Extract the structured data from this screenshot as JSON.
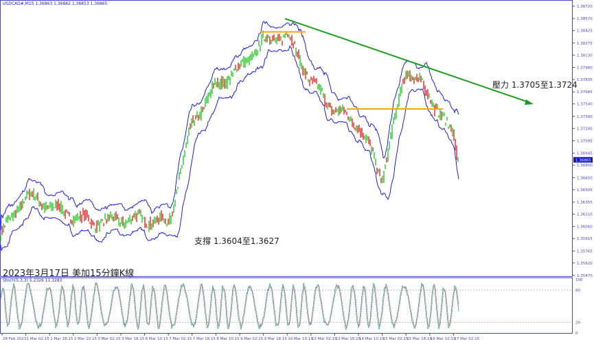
{
  "header": {
    "symbol_info": "USDCAD#,M15  1.36863 1.36882 1.36853 1.36865"
  },
  "title": "2023年3月17日 美加15分鐘K線",
  "annotations": {
    "resistance": "壓力 1.3705至1.3724",
    "support": "支撐 1.3604至1.3627"
  },
  "stoch": {
    "label": "Stoch(5,3,3) 5.2326 11.3283",
    "ticks": [
      "100",
      "80",
      "20",
      "0"
    ]
  },
  "colors": {
    "bull": "#00c000",
    "bear": "#e00000",
    "band": "#1a1aff",
    "trendline": "#1aa01a",
    "level": "#ffa500",
    "axis": "#4444cc",
    "stoch_main": "#20b2aa",
    "stoch_signal": "#e03030"
  },
  "chart_data": {
    "type": "candlestick",
    "symbol": "USDCAD#",
    "timeframe": "M15",
    "ylim": [
      1.3547,
      1.3872
    ],
    "y_ticks": [
      "1.38720",
      "1.38570",
      "1.38425",
      "1.38275",
      "1.38130",
      "1.37980",
      "1.37835",
      "1.37685",
      "1.37540",
      "1.37390",
      "1.37245",
      "1.37095",
      "1.36945",
      "1.36800",
      "1.36650",
      "1.36505",
      "1.36355",
      "1.36210",
      "1.36060",
      "1.35915",
      "1.35765",
      "1.35620",
      "1.35470"
    ],
    "current_price": "1.36865",
    "x_ticks": [
      "28 Feb 2023",
      "1 Mar 02:15",
      "1 Mar 18:15",
      "2 Mar 10:15",
      "3 Mar 02:15",
      "3 Mar 18:15",
      "6 Mar 10:15",
      "7 Mar 02:15",
      "7 Mar 18:15",
      "8 Mar 10:15",
      "9 Mar 02:15",
      "9 Mar 18:15",
      "10 Mar 10:15",
      "13 Mar 02:15",
      "13 Mar 18:15",
      "14 Mar 10:15",
      "15 Mar 02:15",
      "15 Mar 18:15",
      "16 Mar 10:15",
      "17 Mar 02:15"
    ],
    "approx_close_at_ticks": [
      1.3598,
      1.3644,
      1.3631,
      1.3619,
      1.361,
      1.3615,
      1.3615,
      1.361,
      1.373,
      1.3776,
      1.3797,
      1.383,
      1.3838,
      1.378,
      1.3747,
      1.373,
      1.3664,
      1.3797,
      1.3764,
      1.3714
    ],
    "last_close": 1.36865,
    "trendline": {
      "from_price": 1.3857,
      "to_price": 1.3756
    },
    "levels": [
      {
        "price": 1.3841
      },
      {
        "price": 1.3748
      }
    ]
  }
}
